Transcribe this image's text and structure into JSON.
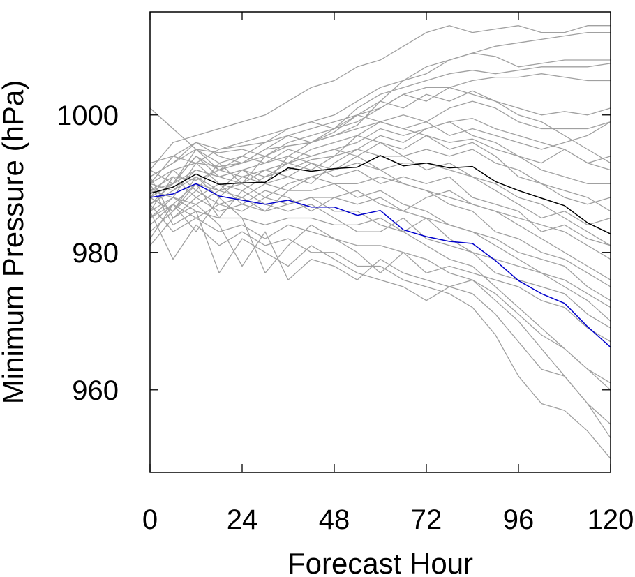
{
  "chart_data": {
    "type": "line",
    "title": "",
    "xlabel": "Forecast Hour",
    "ylabel": "Minimum Pressure (hPa)",
    "xlim": [
      0,
      120
    ],
    "ylim": [
      948,
      1015
    ],
    "xticks": [
      0,
      24,
      48,
      72,
      96,
      120
    ],
    "xtick_labels": [
      "0",
      "24",
      "48",
      "72",
      "96",
      "120"
    ],
    "yticks": [
      960,
      980,
      1000
    ],
    "ytick_labels": [
      "960",
      "980",
      "1000"
    ],
    "grid": false,
    "legend": "none",
    "colors": {
      "members": "#a0a0a0",
      "mean": "#000000",
      "control": "#0000cc"
    },
    "x": [
      0,
      6,
      12,
      18,
      24,
      30,
      36,
      42,
      48,
      54,
      60,
      66,
      72,
      78,
      84,
      90,
      96,
      102,
      108,
      114,
      120
    ],
    "series": [
      {
        "role": "mean",
        "values": [
          988.6,
          989.5,
          991.4,
          989.9,
          990.1,
          990.2,
          992.3,
          991.8,
          992.2,
          992.4,
          994.1,
          992.6,
          993.0,
          992.3,
          992.5,
          990.3,
          989.0,
          987.9,
          986.8,
          984.3,
          982.7
        ]
      },
      {
        "role": "control",
        "values": [
          988.0,
          988.5,
          990.0,
          988.2,
          987.6,
          987.0,
          987.6,
          986.6,
          986.6,
          985.4,
          986.1,
          983.3,
          982.3,
          981.6,
          981.3,
          978.8,
          975.9,
          974.0,
          972.6,
          969.2,
          966.2
        ]
      },
      {
        "role": "member",
        "values": [
          1001.0,
          998.0,
          995.0,
          994.5,
          995.0,
          994.0,
          995.5,
          996.0,
          997.0,
          998.5,
          1002.0,
          1005.0,
          1007.0,
          1008.0,
          1009.0,
          1010.0,
          1010.5,
          1011.0,
          1011.5,
          1012.0,
          1012.0
        ]
      },
      {
        "role": "member",
        "values": [
          992.0,
          996.0,
          997.0,
          998.0,
          999.0,
          1000.0,
          1002.0,
          1004.0,
          1005.0,
          1007.0,
          1008.0,
          1010.0,
          1012.0,
          1013.0,
          1012.0,
          1012.5,
          1013.0,
          1012.0,
          1012.0,
          1013.0,
          1013.0
        ]
      },
      {
        "role": "member",
        "values": [
          990.0,
          994.0,
          996.0,
          995.0,
          995.5,
          996.0,
          998.0,
          999.0,
          1000.0,
          1002.0,
          1004.0,
          1005.0,
          1006.0,
          1008.0,
          1009.0,
          1008.5,
          1007.0,
          1007.5,
          1008.0,
          1008.0,
          1008.0
        ]
      },
      {
        "role": "member",
        "values": [
          991.0,
          993.0,
          995.0,
          993.0,
          994.0,
          996.0,
          997.0,
          996.0,
          998.0,
          1001.0,
          1003.0,
          1004.0,
          1005.0,
          1006.0,
          1006.5,
          1006.0,
          1006.5,
          1007.0,
          1007.0,
          1007.0,
          1007.5
        ]
      },
      {
        "role": "member",
        "values": [
          989.0,
          990.0,
          994.0,
          992.0,
          993.0,
          994.0,
          996.0,
          997.0,
          998.0,
          999.0,
          1001.0,
          1003.0,
          1004.0,
          1004.0,
          1005.0,
          1005.5,
          1005.5,
          1006.0,
          1005.5,
          1005.0,
          1005.0
        ]
      },
      {
        "role": "member",
        "values": [
          988.0,
          992.0,
          993.0,
          992.5,
          993.0,
          995.0,
          995.5,
          996.0,
          997.5,
          1000.0,
          1002.0,
          1001.0,
          1003.0,
          1002.0,
          1003.5,
          1002.0,
          1001.0,
          1000.0,
          1000.5,
          1000.0,
          1001.0
        ]
      },
      {
        "role": "member",
        "values": [
          987.0,
          990.0,
          992.0,
          991.0,
          992.0,
          993.0,
          994.0,
          996.0,
          997.0,
          998.0,
          999.0,
          1000.0,
          999.0,
          1001.0,
          1002.0,
          1001.0,
          999.0,
          998.0,
          998.0,
          998.0,
          999.0
        ]
      },
      {
        "role": "member",
        "values": [
          986.0,
          991.0,
          990.5,
          992.0,
          991.0,
          992.0,
          993.0,
          994.0,
          995.0,
          996.0,
          998.0,
          997.0,
          998.0,
          999.0,
          999.5,
          998.0,
          997.0,
          996.0,
          995.0,
          993.0,
          992.0
        ]
      },
      {
        "role": "member",
        "values": [
          985.0,
          988.0,
          993.0,
          990.0,
          989.0,
          991.0,
          992.0,
          993.5,
          994.0,
          997.0,
          996.0,
          995.0,
          997.0,
          996.0,
          996.5,
          995.0,
          994.0,
          992.0,
          991.0,
          990.0,
          990.0
        ]
      },
      {
        "role": "member",
        "values": [
          990.0,
          989.0,
          991.0,
          988.0,
          991.0,
          990.0,
          991.0,
          990.0,
          993.0,
          995.0,
          994.0,
          994.0,
          995.0,
          994.0,
          995.0,
          993.0,
          992.0,
          990.0,
          989.0,
          988.0,
          986.0
        ]
      },
      {
        "role": "member",
        "values": [
          984.0,
          987.0,
          990.0,
          989.0,
          990.0,
          988.0,
          990.0,
          991.0,
          992.0,
          993.0,
          992.0,
          993.0,
          993.0,
          992.0,
          991.0,
          990.0,
          988.0,
          987.0,
          985.0,
          983.0,
          981.0
        ]
      },
      {
        "role": "member",
        "values": [
          983.0,
          986.0,
          989.0,
          987.0,
          988.0,
          986.0,
          989.0,
          989.0,
          990.0,
          990.0,
          991.0,
          990.0,
          989.0,
          988.0,
          987.0,
          986.0,
          984.0,
          982.0,
          980.0,
          978.0,
          976.0
        ]
      },
      {
        "role": "member",
        "values": [
          981.0,
          985.0,
          988.0,
          986.0,
          987.0,
          986.0,
          987.0,
          988.0,
          988.0,
          987.0,
          988.0,
          986.0,
          985.0,
          984.0,
          983.0,
          981.0,
          979.0,
          977.0,
          975.0,
          973.0,
          970.0
        ]
      },
      {
        "role": "member",
        "values": [
          990.0,
          984.0,
          986.0,
          985.0,
          985.0,
          984.0,
          985.0,
          985.0,
          984.0,
          984.0,
          985.0,
          983.0,
          981.0,
          979.0,
          978.0,
          975.0,
          972.0,
          969.0,
          966.0,
          963.0,
          960.0
        ]
      },
      {
        "role": "member",
        "values": [
          987.0,
          983.0,
          985.0,
          983.0,
          984.0,
          982.0,
          984.0,
          983.0,
          982.0,
          981.0,
          981.0,
          980.0,
          979.0,
          977.0,
          976.0,
          973.0,
          970.0,
          966.0,
          962.0,
          958.0,
          953.0
        ]
      },
      {
        "role": "member",
        "values": [
          986.0,
          979.0,
          984.0,
          981.0,
          983.0,
          981.0,
          982.0,
          980.0,
          980.0,
          978.0,
          978.0,
          976.0,
          975.0,
          974.0,
          972.0,
          968.0,
          962.0,
          958.0,
          957.0,
          954.0,
          950.0
        ]
      },
      {
        "role": "member",
        "values": [
          989.0,
          988.0,
          986.0,
          977.0,
          982.0,
          980.0,
          978.0,
          981.0,
          979.0,
          977.0,
          976.0,
          975.0,
          973.0,
          975.0,
          974.0,
          971.0,
          967.0,
          963.0,
          962.0,
          958.0,
          955.0
        ]
      },
      {
        "role": "member",
        "values": [
          991.0,
          985.0,
          987.0,
          984.0,
          978.0,
          983.0,
          976.0,
          979.0,
          978.0,
          976.0,
          979.0,
          977.0,
          976.0,
          975.0,
          976.0,
          974.0,
          971.0,
          968.0,
          966.0,
          963.0,
          961.0
        ]
      },
      {
        "role": "member",
        "values": [
          982.0,
          987.0,
          983.0,
          988.0,
          985.0,
          977.0,
          981.0,
          984.0,
          982.0,
          980.0,
          977.0,
          980.0,
          977.0,
          978.0,
          977.0,
          976.0,
          975.0,
          973.0,
          972.0,
          969.0,
          967.0
        ]
      },
      {
        "role": "member",
        "values": [
          988.0,
          986.0,
          990.0,
          985.0,
          989.0,
          987.0,
          986.0,
          987.0,
          985.0,
          983.0,
          983.0,
          985.0,
          982.0,
          981.0,
          980.0,
          977.0,
          976.0,
          975.0,
          974.0,
          971.0,
          969.0
        ]
      },
      {
        "role": "member",
        "values": [
          985.0,
          987.0,
          985.0,
          987.0,
          986.0,
          988.0,
          987.0,
          988.0,
          986.0,
          986.0,
          984.0,
          983.0,
          985.0,
          982.0,
          980.0,
          979.0,
          978.0,
          977.0,
          976.0,
          974.0,
          972.0
        ]
      },
      {
        "role": "member",
        "values": [
          992.0,
          990.0,
          995.0,
          992.0,
          994.0,
          993.0,
          995.0,
          994.0,
          995.0,
          994.0,
          992.0,
          990.0,
          989.0,
          987.0,
          986.0,
          983.0,
          982.0,
          980.0,
          979.0,
          977.0,
          975.0
        ]
      },
      {
        "role": "member",
        "values": [
          989.0,
          991.0,
          988.0,
          990.0,
          987.0,
          989.0,
          988.0,
          986.0,
          988.0,
          989.0,
          987.0,
          986.0,
          988.0,
          989.0,
          987.0,
          986.0,
          985.0,
          984.0,
          983.0,
          981.0,
          979.0
        ]
      },
      {
        "role": "member",
        "values": [
          988.0,
          986.0,
          991.0,
          989.0,
          992.0,
          991.0,
          993.0,
          992.0,
          994.0,
          995.0,
          997.0,
          996.0,
          998.0,
          999.0,
          997.0,
          996.0,
          994.0,
          993.0,
          995.0,
          993.0,
          994.0
        ]
      },
      {
        "role": "member",
        "values": [
          990.0,
          992.0,
          989.0,
          993.0,
          990.0,
          994.0,
          993.0,
          995.0,
          996.0,
          997.0,
          999.0,
          998.0,
          997.0,
          995.0,
          996.0,
          994.0,
          991.0,
          990.0,
          988.0,
          987.0,
          988.0
        ]
      },
      {
        "role": "member",
        "values": [
          987.0,
          989.0,
          992.0,
          991.0,
          990.0,
          992.0,
          991.0,
          993.0,
          991.0,
          992.0,
          990.0,
          991.0,
          990.0,
          991.0,
          988.0,
          987.0,
          986.0,
          983.0,
          984.0,
          982.0,
          981.0
        ]
      },
      {
        "role": "member",
        "values": [
          991.0,
          993.0,
          996.0,
          994.0,
          993.0,
          995.0,
          997.0,
          998.0,
          999.0,
          1000.0,
          1001.0,
          1003.0,
          1002.0,
          1004.0,
          1003.0,
          1002.0,
          1000.0,
          999.0,
          997.0,
          995.0,
          993.0
        ]
      },
      {
        "role": "member",
        "values": [
          986.0,
          988.0,
          987.0,
          989.0,
          988.0,
          990.0,
          989.0,
          991.0,
          990.0,
          988.0,
          989.0,
          987.0,
          986.0,
          984.0,
          983.0,
          982.0,
          980.0,
          979.0,
          978.0,
          975.0,
          973.0
        ]
      },
      {
        "role": "member",
        "values": [
          993.0,
          994.0,
          993.0,
          995.0,
          996.0,
          997.0,
          998.0,
          999.0,
          998.0,
          1000.0,
          999.0,
          998.0,
          999.0,
          997.0,
          998.0,
          997.0,
          996.0,
          995.0,
          996.0,
          997.0,
          999.0
        ]
      },
      {
        "role": "member",
        "values": [
          988.0,
          990.0,
          994.0,
          991.0,
          992.0,
          990.0,
          994.0,
          993.0,
          992.0,
          994.0,
          996.0,
          994.0,
          992.0,
          993.0,
          991.0,
          989.0,
          987.0,
          985.0,
          986.0,
          984.0,
          985.0
        ]
      }
    ]
  }
}
